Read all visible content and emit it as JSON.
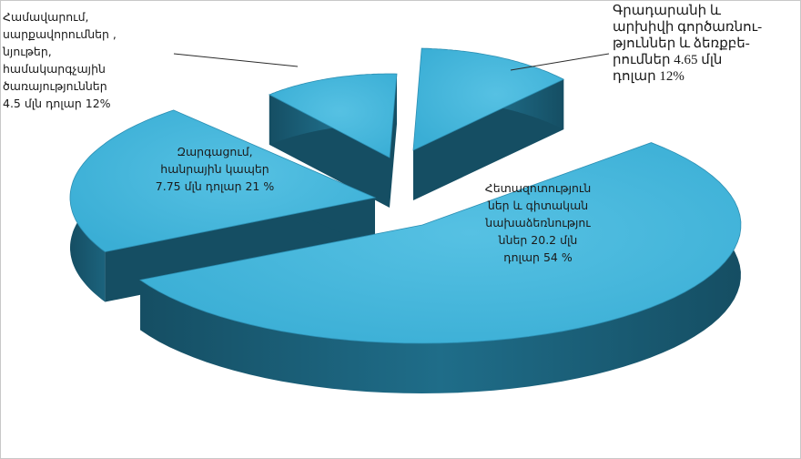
{
  "chart_data": {
    "type": "pie",
    "style": "3d-exploded",
    "slices": [
      {
        "label": "Գրադարանի և\nարխիվի գործառնու-\nթյուններ և ձեռքբե-\nրումներ 4.65 մլն\nդոլար 12%",
        "value": 12,
        "amount": 4.65
      },
      {
        "label": "Հետազոտություն\nներ և գիտական\nնախաձեռնությու\nններ  20.2 մլն\nդոլար  54 %",
        "value": 54,
        "amount": 20.2
      },
      {
        "label": "Զարգացում,\nհանրային կապեր\n7.75 մլն դոլար 21 %",
        "value": 21,
        "amount": 7.75
      },
      {
        "label": "Համավարում,\nսարքավորումներ ,\nնյութեր,\nհամակարգչային\nծառայություններ\n4.5 մլն դոլար  12%",
        "value": 12,
        "amount": 4.5
      }
    ],
    "colors": {
      "top": "#3aaed5",
      "top_light": "#56c1e3",
      "side": "#1f6d89",
      "side_dark": "#154e63",
      "leader": "#2b2b2b"
    }
  }
}
